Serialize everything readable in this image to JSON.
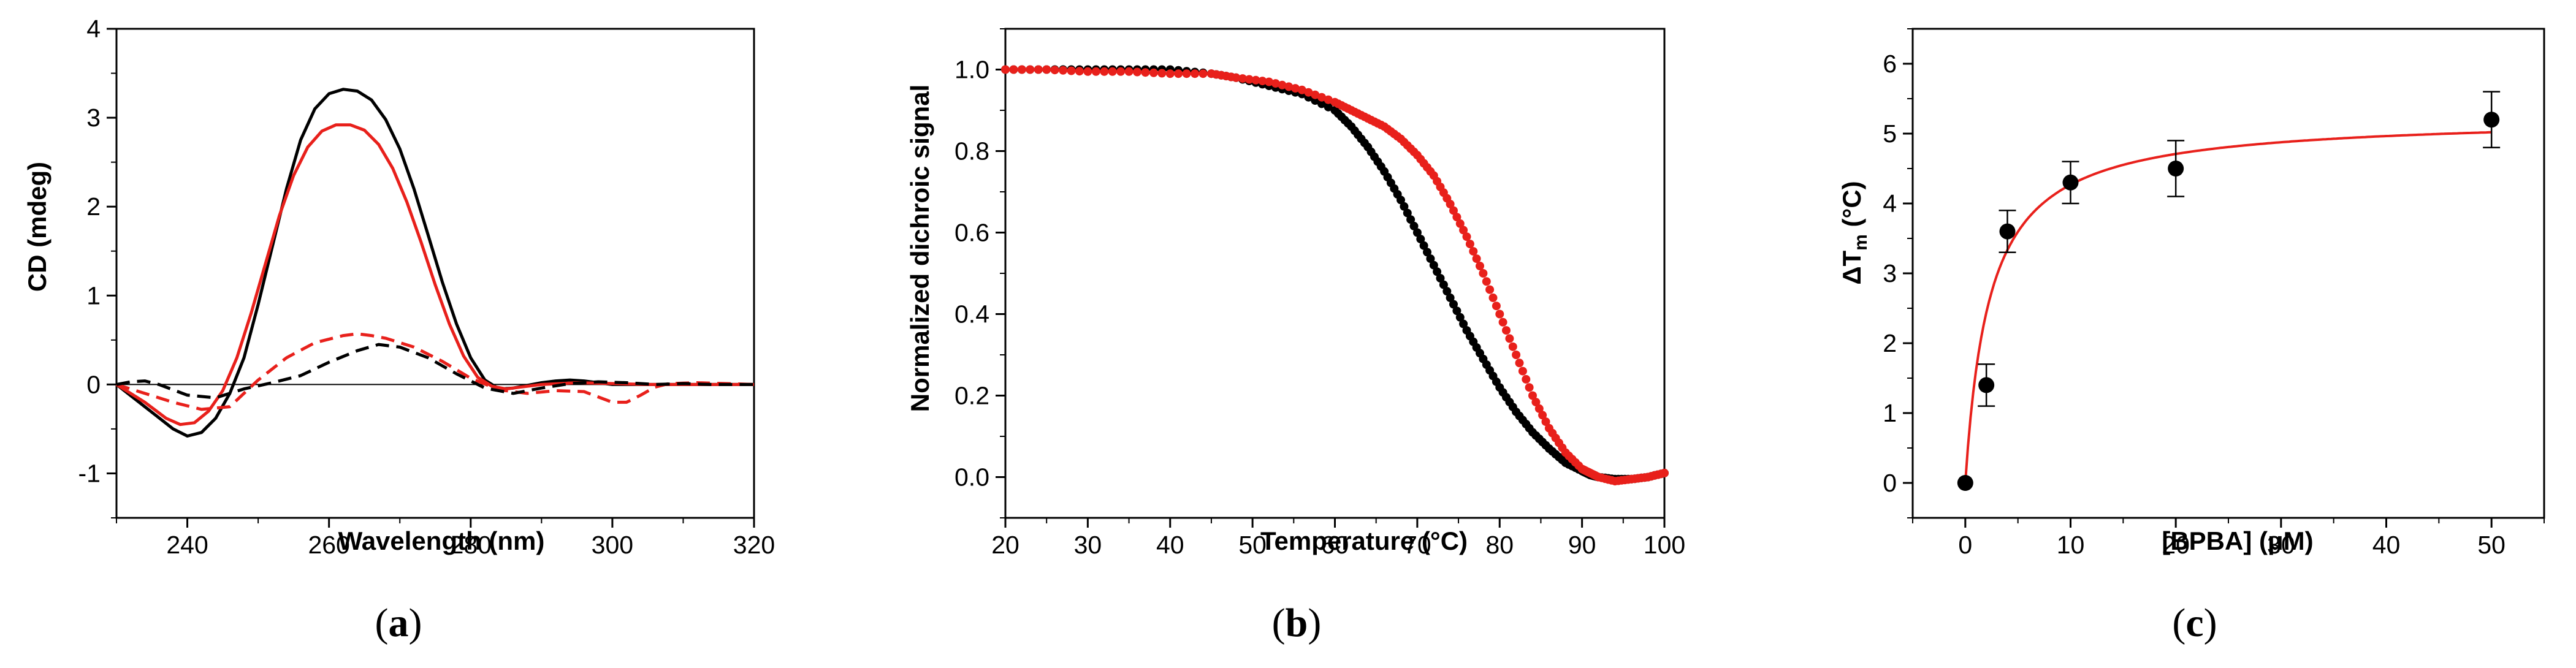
{
  "colors": {
    "black": "#000000",
    "red": "#e8201b"
  },
  "chart_data": [
    {
      "id": "a",
      "type": "line",
      "panel_label": "a",
      "xlabel": "Wavelength (nm)",
      "ylabel": "CD (mdeg)",
      "xlim": [
        230,
        320
      ],
      "ylim": [
        -1.5,
        4
      ],
      "xticks": [
        240,
        260,
        280,
        300,
        320
      ],
      "yticks": [
        -1,
        0,
        1,
        2,
        3,
        4
      ],
      "zero_line": true,
      "series": [
        {
          "name": "solid-black",
          "color": "#000000",
          "dash": "solid",
          "x": [
            230,
            234,
            238,
            240,
            242,
            244,
            246,
            248,
            250,
            252,
            254,
            256,
            258,
            260,
            262,
            264,
            266,
            268,
            270,
            272,
            274,
            276,
            278,
            280,
            282,
            284,
            286,
            288,
            290,
            292,
            294,
            296,
            298,
            300,
            302,
            304,
            306,
            308,
            310,
            312,
            314,
            316,
            318,
            320
          ],
          "y": [
            0,
            -0.25,
            -0.5,
            -0.58,
            -0.54,
            -0.38,
            -0.1,
            0.3,
            0.9,
            1.55,
            2.2,
            2.75,
            3.1,
            3.27,
            3.32,
            3.3,
            3.2,
            2.98,
            2.65,
            2.2,
            1.68,
            1.15,
            0.68,
            0.3,
            0.05,
            -0.05,
            -0.04,
            -0.01,
            0.02,
            0.04,
            0.05,
            0.04,
            0.02,
            0,
            0,
            0,
            0,
            0,
            0,
            0,
            0,
            0,
            0,
            0
          ]
        },
        {
          "name": "solid-red",
          "color": "#e8201b",
          "dash": "solid",
          "x": [
            230,
            234,
            237,
            239,
            241,
            243,
            245,
            247,
            249,
            251,
            253,
            255,
            257,
            259,
            261,
            263,
            265,
            267,
            269,
            271,
            273,
            275,
            277,
            279,
            281,
            283,
            285,
            287,
            290,
            295,
            300,
            305,
            310,
            315,
            320
          ],
          "y": [
            0,
            -0.2,
            -0.38,
            -0.45,
            -0.43,
            -0.3,
            -0.07,
            0.3,
            0.8,
            1.35,
            1.9,
            2.35,
            2.67,
            2.85,
            2.92,
            2.92,
            2.86,
            2.7,
            2.43,
            2.05,
            1.6,
            1.12,
            0.68,
            0.32,
            0.08,
            -0.02,
            -0.05,
            -0.03,
            0,
            0.02,
            0.01,
            0,
            0,
            0,
            0
          ]
        },
        {
          "name": "dashed-red",
          "color": "#e8201b",
          "dash": "dashed",
          "x": [
            230,
            234,
            238,
            242,
            246,
            250,
            254,
            258,
            262,
            264,
            266,
            268,
            272,
            276,
            280,
            284,
            288,
            292,
            296,
            300,
            302,
            304,
            306,
            308,
            312,
            316,
            320
          ],
          "y": [
            0,
            -0.1,
            -0.2,
            -0.28,
            -0.25,
            0.05,
            0.3,
            0.47,
            0.55,
            0.57,
            0.55,
            0.52,
            0.42,
            0.26,
            0.07,
            -0.06,
            -0.1,
            -0.07,
            -0.08,
            -0.2,
            -0.2,
            -0.12,
            -0.03,
            0.01,
            0.02,
            0.01,
            0
          ]
        },
        {
          "name": "dashed-black",
          "color": "#000000",
          "dash": "dashed",
          "x": [
            230,
            232,
            234,
            236,
            240,
            244,
            248,
            252,
            256,
            260,
            264,
            267,
            270,
            274,
            278,
            282,
            286,
            290,
            294,
            298,
            302,
            306,
            310,
            314,
            318,
            320
          ],
          "y": [
            0,
            0.03,
            0.04,
            0,
            -0.12,
            -0.15,
            -0.05,
            0.02,
            0.1,
            0.25,
            0.38,
            0.45,
            0.42,
            0.3,
            0.12,
            -0.04,
            -0.1,
            -0.04,
            0.01,
            0.03,
            0.02,
            0,
            0.01,
            0,
            0,
            0
          ]
        }
      ]
    },
    {
      "id": "b",
      "type": "scatter",
      "panel_label": "b",
      "xlabel": "Temperature (°C)",
      "ylabel": "Normalized dichroic signal",
      "xlim": [
        20,
        100
      ],
      "ylim": [
        -0.1,
        1.1
      ],
      "xticks": [
        20,
        30,
        40,
        50,
        60,
        70,
        80,
        90,
        100
      ],
      "yticks": [
        0.0,
        0.2,
        0.4,
        0.6,
        0.8,
        1.0
      ],
      "ytick_labels": [
        "0.0",
        "0.2",
        "0.4",
        "0.6",
        "0.8",
        "1.0"
      ],
      "series": [
        {
          "name": "black-melting",
          "color": "#000000",
          "marker": "circle",
          "x": [
            20,
            25,
            30,
            35,
            40,
            45,
            48,
            52,
            56,
            60,
            62,
            64,
            66,
            68,
            70,
            72,
            74,
            76,
            78,
            80,
            82,
            84,
            86,
            88,
            90,
            91,
            92,
            94,
            96,
            98,
            100
          ],
          "y": [
            1.0,
            1.0,
            1.0,
            1.0,
            1.0,
            0.99,
            0.98,
            0.96,
            0.94,
            0.9,
            0.86,
            0.81,
            0.75,
            0.68,
            0.6,
            0.52,
            0.44,
            0.36,
            0.29,
            0.22,
            0.16,
            0.11,
            0.07,
            0.035,
            0.015,
            0.005,
            0,
            -0.005,
            -0.005,
            0,
            0.01
          ]
        },
        {
          "name": "red-melting",
          "color": "#e8201b",
          "marker": "circle",
          "x": [
            20,
            25,
            30,
            35,
            40,
            45,
            48,
            52,
            56,
            60,
            62,
            64,
            66,
            68,
            70,
            72,
            74,
            76,
            78,
            80,
            82,
            84,
            86,
            88,
            90,
            91,
            92,
            94,
            96,
            98,
            100
          ],
          "y": [
            1.0,
            1.0,
            0.995,
            0.995,
            0.99,
            0.99,
            0.98,
            0.97,
            0.95,
            0.92,
            0.9,
            0.88,
            0.86,
            0.83,
            0.79,
            0.74,
            0.67,
            0.59,
            0.5,
            0.4,
            0.3,
            0.2,
            0.12,
            0.06,
            0.02,
            0.01,
            0,
            -0.01,
            -0.005,
            0,
            0.01
          ]
        }
      ]
    },
    {
      "id": "c",
      "type": "scatter",
      "panel_label": "c",
      "xlabel": "[BPBA] (μM)",
      "ylabel": "ΔT",
      "ylabel_sub": "m",
      "ylabel_suffix": " (°C)",
      "xlim": [
        -5,
        55
      ],
      "ylim": [
        -0.5,
        6.5
      ],
      "xticks": [
        0,
        10,
        20,
        30,
        40,
        50
      ],
      "yticks": [
        0,
        1,
        2,
        3,
        4,
        5,
        6
      ],
      "series": [
        {
          "name": "delta-tm-points",
          "color": "#000000",
          "marker": "circle",
          "x": [
            0,
            2,
            4,
            10,
            20,
            50
          ],
          "y": [
            0,
            1.4,
            3.6,
            4.3,
            4.5,
            5.2
          ],
          "err": [
            0,
            0.3,
            0.3,
            0.3,
            0.4,
            0.4
          ]
        }
      ],
      "fit": {
        "name": "binding-fit",
        "color": "#e8201b",
        "model": "hyperbolic",
        "bmax": 5.25,
        "kd": 2.3
      }
    }
  ]
}
